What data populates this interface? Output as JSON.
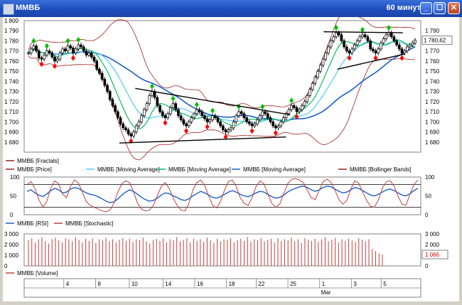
{
  "window": {
    "title": "ММВБ",
    "interval": "60 минут",
    "close_glyph": "✕",
    "max_glyph": "☐",
    "min_glyph": "_"
  },
  "colors": {
    "up": "#00c000",
    "down": "#ff0000",
    "candle": "#000000",
    "ma_fast": "#00c060",
    "ma_mid": "#50c8ff",
    "ma_slow": "#1a5fc8",
    "bollinger": "#a02020",
    "rsi": "#1a5fc8",
    "stoch": "#c04040",
    "volume": "#c04040",
    "price_tag": "#d00000"
  },
  "legend_main": [
    {
      "label": "ММВБ [Fractals]",
      "color": "#a02020"
    },
    {
      "label": "ММВБ [Price]",
      "color": "#a02020"
    },
    {
      "label": "ММВБ [Moving Average]",
      "color": "#50c8ff"
    },
    {
      "label": "ММВБ [Moving Average]",
      "color": "#00c060"
    },
    {
      "label": "ММВБ [Moving Average]",
      "color": "#1a5fc8"
    },
    {
      "label": "ММВБ [Bollinger Bands]",
      "color": "#a02020"
    }
  ],
  "legend_osc": [
    {
      "label": "ММВБ [RSI]",
      "color": "#1a5fc8"
    },
    {
      "label": "ММВБ [Stochastic]",
      "color": "#c04040"
    }
  ],
  "legend_vol": [
    {
      "label": "ММВБ [Volume]",
      "color": "#c04040"
    }
  ],
  "chart_data": [
    {
      "type": "line",
      "panel": "price",
      "ylim": [
        1670,
        1800
      ],
      "y_ticks": [
        1680,
        1690,
        1700,
        1710,
        1720,
        1730,
        1740,
        1750,
        1760,
        1770,
        1780,
        1790,
        1800
      ],
      "y_tick_labels_left": [
        "1 680",
        "1 690",
        "1 700",
        "1 710",
        "1 720",
        "1 730",
        "1 740",
        "1 750",
        "1 760",
        "1 770",
        "1 780",
        "1 790",
        "1 800"
      ],
      "y_tick_labels_right": [
        "1 680",
        "1 690",
        "1 700",
        "1 710",
        "1 720",
        "1 730",
        "1 740",
        "1 750",
        "1 760",
        "1 770",
        "",
        "1 790",
        ""
      ],
      "last_price_label": "1 780,62",
      "last_price": 1780.62,
      "close": [
        1768,
        1772,
        1775,
        1770,
        1763,
        1762,
        1766,
        1770,
        1768,
        1764,
        1760,
        1762,
        1768,
        1772,
        1770,
        1775,
        1773,
        1768,
        1772,
        1776,
        1774,
        1770,
        1766,
        1768,
        1764,
        1760,
        1752,
        1748,
        1742,
        1736,
        1730,
        1722,
        1716,
        1710,
        1704,
        1698,
        1694,
        1692,
        1688,
        1686,
        1690,
        1696,
        1700,
        1706,
        1712,
        1718,
        1726,
        1730,
        1724,
        1716,
        1710,
        1706,
        1704,
        1708,
        1714,
        1718,
        1712,
        1706,
        1702,
        1698,
        1696,
        1700,
        1704,
        1708,
        1712,
        1710,
        1706,
        1703,
        1700,
        1702,
        1706,
        1704,
        1700,
        1696,
        1692,
        1690,
        1692,
        1694,
        1700,
        1706,
        1710,
        1708,
        1704,
        1700,
        1698,
        1696,
        1698,
        1702,
        1706,
        1710,
        1708,
        1704,
        1700,
        1696,
        1694,
        1696,
        1700,
        1704,
        1708,
        1712,
        1716,
        1714,
        1710,
        1712,
        1716,
        1720,
        1726,
        1732,
        1738,
        1744,
        1750,
        1756,
        1762,
        1768,
        1774,
        1780,
        1784,
        1788,
        1786,
        1780,
        1774,
        1770,
        1768,
        1772,
        1776,
        1780,
        1784,
        1786,
        1784,
        1780,
        1772,
        1770,
        1768,
        1772,
        1778,
        1782,
        1786,
        1788,
        1784,
        1780,
        1776,
        1772,
        1768,
        1770,
        1774,
        1776,
        1778,
        1780.62
      ],
      "series_names": [
        "ММВБ [Price]",
        "ММВБ [Moving Average]",
        "ММВБ [Moving Average]",
        "ММВБ [Moving Average]",
        "ММВБ [Bollinger Bands]",
        "ММВБ [Fractals]"
      ],
      "trendlines": [
        {
          "from": [
            0.28,
            1733
          ],
          "to": [
            0.67,
            1707
          ]
        },
        {
          "from": [
            0.24,
            1679
          ],
          "to": [
            0.66,
            1685
          ]
        },
        {
          "from": [
            0.755,
            1789
          ],
          "to": [
            0.955,
            1788
          ]
        },
        {
          "from": [
            0.79,
            1752
          ],
          "to": [
            0.96,
            1767
          ]
        }
      ]
    },
    {
      "type": "line",
      "panel": "oscillator",
      "ylim": [
        0,
        100
      ],
      "y_ticks": [
        0,
        50,
        100
      ],
      "y_tick_labels": [
        "0",
        "50",
        "100"
      ],
      "levels": [
        20,
        80
      ],
      "series": [
        {
          "name": "ММВБ [RSI]",
          "values": [
            62,
            66,
            58,
            52,
            48,
            55,
            64,
            70,
            66,
            58,
            60,
            68,
            72,
            70,
            64,
            58,
            54,
            52,
            48,
            42,
            36,
            32,
            34,
            42,
            52,
            60,
            66,
            62,
            54,
            46,
            40,
            36,
            38,
            44,
            52,
            58,
            56,
            50,
            46,
            40,
            38,
            42,
            50,
            56,
            62,
            58,
            52,
            46,
            44,
            48,
            54,
            60,
            64,
            60,
            54,
            50,
            48,
            52,
            58,
            62,
            60,
            54,
            48,
            44,
            46,
            52,
            60,
            66,
            70,
            74,
            76,
            72,
            66,
            62,
            66,
            72,
            76,
            74,
            68,
            62,
            58,
            60,
            66,
            72,
            70,
            64,
            58,
            52,
            50,
            54,
            60,
            66,
            68,
            64,
            58,
            52,
            50,
            56,
            64,
            70
          ]
        },
        {
          "name": "ММВБ [Stochastic]",
          "values": [
            80,
            88,
            70,
            40,
            20,
            35,
            70,
            90,
            82,
            55,
            45,
            75,
            92,
            85,
            60,
            35,
            25,
            20,
            15,
            10,
            8,
            12,
            30,
            60,
            82,
            90,
            85,
            60,
            30,
            15,
            10,
            12,
            25,
            50,
            75,
            85,
            70,
            45,
            25,
            12,
            10,
            30,
            65,
            85,
            92,
            78,
            50,
            25,
            18,
            35,
            65,
            88,
            92,
            75,
            45,
            30,
            25,
            45,
            75,
            90,
            82,
            55,
            30,
            20,
            28,
            55,
            82,
            94,
            96,
            92,
            85,
            65,
            45,
            40,
            65,
            88,
            94,
            86,
            65,
            40,
            28,
            38,
            68,
            90,
            84,
            60,
            38,
            22,
            20,
            40,
            70,
            88,
            90,
            75,
            48,
            28,
            25,
            55,
            80,
            92
          ]
        }
      ]
    },
    {
      "type": "bar",
      "panel": "volume",
      "ylim": [
        0,
        3000
      ],
      "y_ticks": [
        0,
        1000,
        2000,
        3000
      ],
      "y_tick_labels_left": [
        "0",
        "1 000",
        "2 000",
        "3 000"
      ],
      "y_tick_labels_right": [
        "0",
        "",
        "2 000",
        "3 000"
      ],
      "last_volume_label": "1 066",
      "last_volume": 1066,
      "name": "ММВБ [Volume]",
      "values": [
        2400,
        2600,
        2200,
        2500,
        2700,
        2300,
        2100,
        2500,
        2650,
        2400,
        2200,
        2600,
        2500,
        2300,
        2700,
        2450,
        2200,
        2550,
        2350,
        2600,
        2150,
        2500,
        2400,
        2650,
        2300,
        2500,
        2200,
        2450,
        2600,
        2350,
        2550,
        2250,
        2500,
        2400,
        2650,
        2300,
        2100,
        2450,
        2550,
        2350,
        2600,
        2200,
        2500,
        2400,
        2700,
        2300,
        2450,
        2600,
        2200,
        2550,
        2350,
        2500,
        2250,
        2650,
        2400,
        2150,
        2550,
        2300,
        2500,
        2450,
        2600,
        2200,
        2400,
        2550,
        2350,
        2700,
        2250,
        2500,
        2400,
        2600,
        2300,
        2450,
        2550,
        2200,
        2600,
        2350,
        2500,
        2400,
        2650,
        2300,
        2500,
        2150,
        2600,
        2450,
        2350,
        2550,
        2250,
        2500,
        2700,
        2300,
        2450,
        2600,
        2200,
        2500,
        2350,
        2550,
        2400,
        2250,
        2600,
        2450,
        2300,
        2500,
        1600,
        1400,
        1200,
        1066
      ]
    }
  ],
  "x_axis": {
    "day_ticks": [
      "4",
      "8",
      "10",
      "14",
      "16",
      "18",
      "22",
      "25",
      "1",
      "3",
      "5"
    ],
    "month_label": "Mar"
  }
}
